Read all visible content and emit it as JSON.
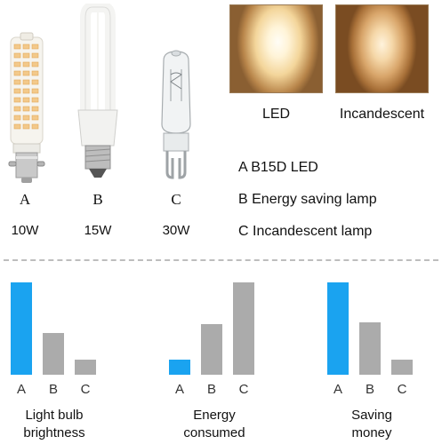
{
  "bulbs": [
    {
      "letter": "A",
      "wattage": "10W"
    },
    {
      "letter": "B",
      "wattage": "15W"
    },
    {
      "letter": "C",
      "wattage": "30W"
    }
  ],
  "comparison": {
    "led_label": "LED",
    "incandescent_label": "Incandescent"
  },
  "legend": [
    "A B15D LED",
    "B Energy saving lamp",
    "C Incandescent lamp"
  ],
  "colors": {
    "highlight": "#1aa3f0",
    "neutral": "#ababab"
  },
  "chart_data": [
    {
      "type": "bar",
      "categories": [
        "A",
        "B",
        "C"
      ],
      "values": [
        1.0,
        0.45,
        0.16
      ],
      "highlight_index": 0,
      "caption_line1": "Light bulb",
      "caption_line2": "brightness"
    },
    {
      "type": "bar",
      "categories": [
        "A",
        "B",
        "C"
      ],
      "values": [
        0.16,
        0.55,
        1.0
      ],
      "highlight_index": 0,
      "caption_line1": "Energy",
      "caption_line2": "consumed"
    },
    {
      "type": "bar",
      "categories": [
        "A",
        "B",
        "C"
      ],
      "values": [
        1.0,
        0.57,
        0.16
      ],
      "highlight_index": 0,
      "caption_line1": "Saving",
      "caption_line2": "money"
    }
  ]
}
